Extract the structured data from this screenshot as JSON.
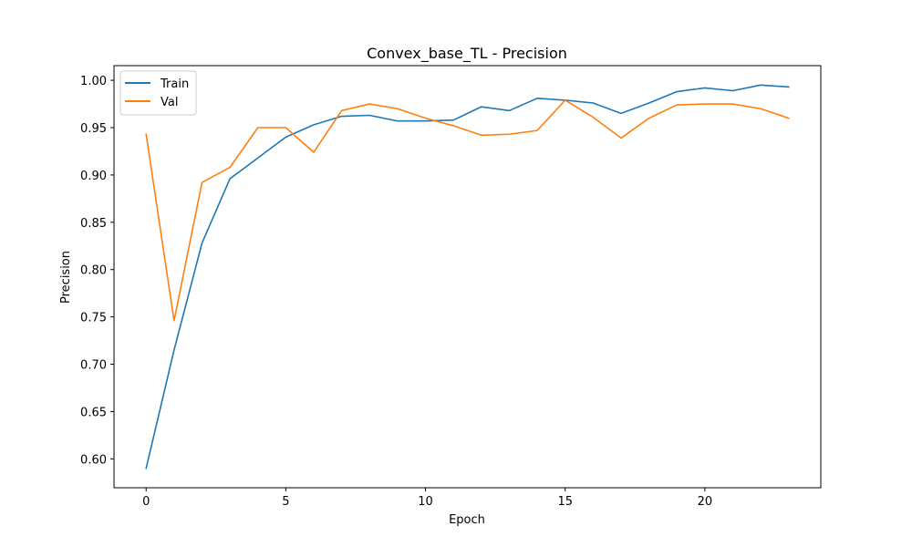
{
  "chart_data": {
    "type": "line",
    "title": "Convex_base_TL - Precision",
    "xlabel": "Epoch",
    "ylabel": "Precision",
    "xlim": [
      -1.15,
      24.15
    ],
    "ylim": [
      0.5695,
      1.0155
    ],
    "xticks": [
      0,
      5,
      10,
      15,
      20
    ],
    "yticks": [
      0.6,
      0.65,
      0.7,
      0.75,
      0.8,
      0.85,
      0.9,
      0.95,
      1.0
    ],
    "ytick_labels": [
      "0.60",
      "0.65",
      "0.70",
      "0.75",
      "0.80",
      "0.85",
      "0.90",
      "0.95",
      "1.00"
    ],
    "grid": false,
    "legend_position": "top-left",
    "x": [
      0,
      1,
      2,
      3,
      4,
      5,
      6,
      7,
      8,
      9,
      10,
      11,
      12,
      13,
      14,
      15,
      16,
      17,
      18,
      19,
      20,
      21,
      22,
      23
    ],
    "series": [
      {
        "name": "Train",
        "color": "#1f77b4",
        "values": [
          0.59,
          0.715,
          0.828,
          0.896,
          0.918,
          0.94,
          0.953,
          0.962,
          0.963,
          0.957,
          0.957,
          0.958,
          0.972,
          0.968,
          0.981,
          0.979,
          0.976,
          0.965,
          0.976,
          0.988,
          0.992,
          0.989,
          0.995,
          0.993
        ]
      },
      {
        "name": "Val",
        "color": "#ff7f0e",
        "values": [
          0.943,
          0.746,
          0.892,
          0.908,
          0.95,
          0.95,
          0.924,
          0.968,
          0.975,
          0.97,
          0.96,
          0.952,
          0.942,
          0.943,
          0.947,
          0.979,
          0.961,
          0.939,
          0.96,
          0.974,
          0.975,
          0.975,
          0.97,
          0.96
        ]
      }
    ]
  }
}
